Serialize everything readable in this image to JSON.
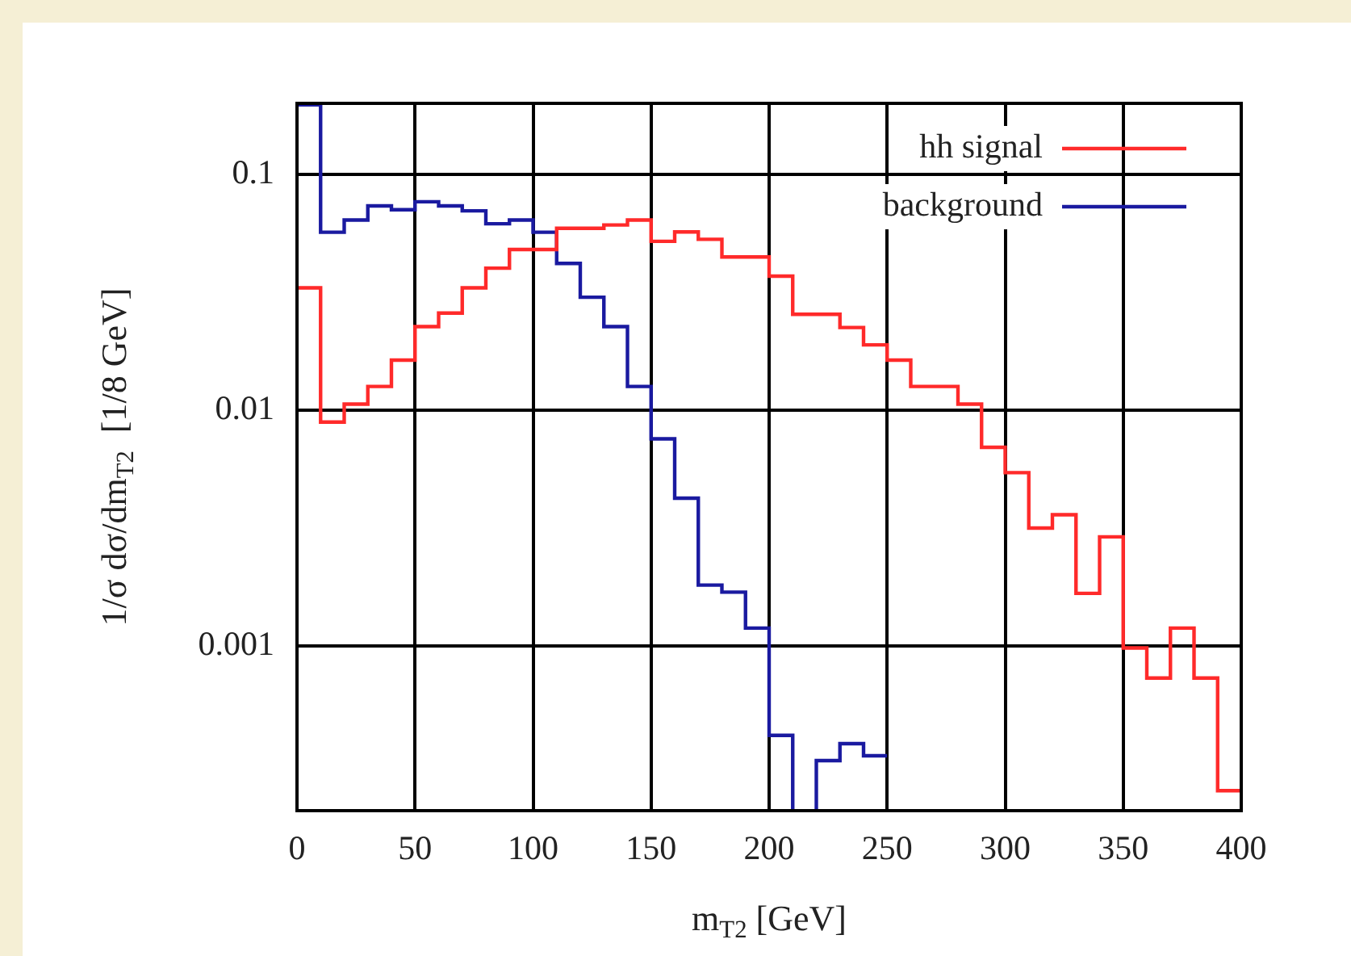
{
  "chart_data": {
    "type": "histogram",
    "xlabel": "m$_{T2}$ [GeV]",
    "ylabel": "1/σ dσ/dm$_{T2}$  [1/8 GeV]",
    "bins": [
      0,
      10,
      20,
      30,
      40,
      50,
      60,
      70,
      80,
      90,
      100,
      110,
      120,
      130,
      140,
      150,
      160,
      170,
      180,
      190,
      200,
      210,
      220,
      230,
      240,
      250,
      260,
      270,
      280,
      290,
      300,
      310,
      320,
      330,
      340,
      350,
      360,
      370,
      380,
      390,
      400
    ],
    "series": [
      {
        "name": "hh signal",
        "color": "#ff2a2a",
        "values": [
          0.033,
          0.0089,
          0.0106,
          0.0126,
          0.0163,
          0.0226,
          0.0258,
          0.033,
          0.04,
          0.048,
          0.048,
          0.059,
          0.059,
          0.061,
          0.064,
          0.052,
          0.057,
          0.053,
          0.0446,
          0.0446,
          0.037,
          0.0255,
          0.0255,
          0.0224,
          0.0189,
          0.0163,
          0.0126,
          0.0126,
          0.0106,
          0.00695,
          0.00543,
          0.00316,
          0.0036,
          0.00167,
          0.0029,
          0.00098,
          0.00073,
          0.00119,
          0.00073,
          0.000243
        ]
      },
      {
        "name": "background",
        "color": "#1a1aa0",
        "bins": [
          0,
          10,
          20,
          30,
          40,
          50,
          60,
          70,
          80,
          90,
          100,
          110,
          120,
          130,
          140,
          150,
          160,
          170,
          180,
          190,
          200,
          210,
          220,
          230,
          240,
          250
        ],
        "values": [
          0.197,
          0.0568,
          0.064,
          0.0735,
          0.0708,
          0.0765,
          0.0735,
          0.07,
          0.0617,
          0.064,
          0.0568,
          0.0419,
          0.0301,
          0.0226,
          0.0126,
          0.00755,
          0.00423,
          0.00181,
          0.00169,
          0.00119,
          0.000417,
          null,
          0.000326,
          0.000385,
          0.000342
        ]
      }
    ],
    "log": "y",
    "xlim": [
      0,
      400
    ],
    "xticks": [
      0,
      50,
      100,
      150,
      200,
      250,
      300,
      350,
      400
    ],
    "ylim": [
      0.0002,
      0.2
    ],
    "yticks": [
      0.1,
      0.01,
      0.001
    ],
    "grid": true,
    "legend": "top right"
  }
}
